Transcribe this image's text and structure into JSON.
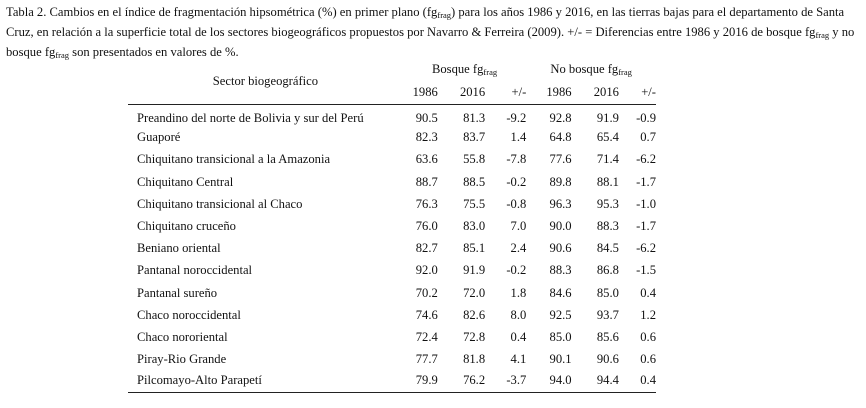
{
  "caption": {
    "part1": "Tabla 2. Cambios en el índice de fragmentación hipsométrica (%) en primer plano (fg",
    "sub1": "frag",
    "part2": ") para los años 1986 y 2016, en las tierras bajas para el departamento de Santa Cruz, en relación a la superficie total de los sectores biogeográficos propuestos por Navarro & Ferreira (2009). +/- = Diferencias entre 1986 y 2016 de bosque fg",
    "sub2": "frag",
    "part3": " y no bosque fg",
    "sub3": "frag",
    "part4": " son presentados en valores de %."
  },
  "table": {
    "sector_header": "Sector biogeográfico",
    "group1": {
      "label": "Bosque fg",
      "sub": "frag"
    },
    "group2": {
      "label": "No bosque fg",
      "sub": "frag"
    },
    "subheaders": [
      "1986",
      "2016",
      "+/-",
      "1986",
      "2016",
      "+/-"
    ],
    "rows": [
      {
        "sector": "Preandino del norte de Bolivia y sur del Perú",
        "v": [
          "90.5",
          "81.3",
          "-9.2",
          "92.8",
          "91.9",
          "-0.9"
        ]
      },
      {
        "sector": "Guaporé",
        "v": [
          "82.3",
          "83.7",
          "1.4",
          "64.8",
          "65.4",
          "0.7"
        ]
      },
      {
        "sector": "Chiquitano transicional a la Amazonia",
        "v": [
          "63.6",
          "55.8",
          "-7.8",
          "77.6",
          "71.4",
          "-6.2"
        ]
      },
      {
        "sector": "Chiquitano Central",
        "v": [
          "88.7",
          "88.5",
          "-0.2",
          "89.8",
          "88.1",
          "-1.7"
        ]
      },
      {
        "sector": "Chiquitano transicional al Chaco",
        "v": [
          "76.3",
          "75.5",
          "-0.8",
          "96.3",
          "95.3",
          "-1.0"
        ]
      },
      {
        "sector": "Chiquitano cruceño",
        "v": [
          "76.0",
          "83.0",
          "7.0",
          "90.0",
          "88.3",
          "-1.7"
        ]
      },
      {
        "sector": "Beniano oriental",
        "v": [
          "82.7",
          "85.1",
          "2.4",
          "90.6",
          "84.5",
          "-6.2"
        ]
      },
      {
        "sector": "Pantanal noroccidental",
        "v": [
          "92.0",
          "91.9",
          "-0.2",
          "88.3",
          "86.8",
          "-1.5"
        ]
      },
      {
        "sector": "Pantanal sureño",
        "v": [
          "70.2",
          "72.0",
          "1.8",
          "84.6",
          "85.0",
          "0.4"
        ]
      },
      {
        "sector": "Chaco noroccidental",
        "v": [
          "74.6",
          "82.6",
          "8.0",
          "92.5",
          "93.7",
          "1.2"
        ]
      },
      {
        "sector": "Chaco nororiental",
        "v": [
          "72.4",
          "72.8",
          "0.4",
          "85.0",
          "85.6",
          "0.6"
        ]
      },
      {
        "sector": "Piray-Rio Grande",
        "v": [
          "77.7",
          "81.8",
          "4.1",
          "90.1",
          "90.6",
          "0.6"
        ]
      },
      {
        "sector": "Pilcomayo-Alto Parapetí",
        "v": [
          "79.9",
          "76.2",
          "-3.7",
          "94.0",
          "94.4",
          "0.4"
        ]
      }
    ]
  }
}
